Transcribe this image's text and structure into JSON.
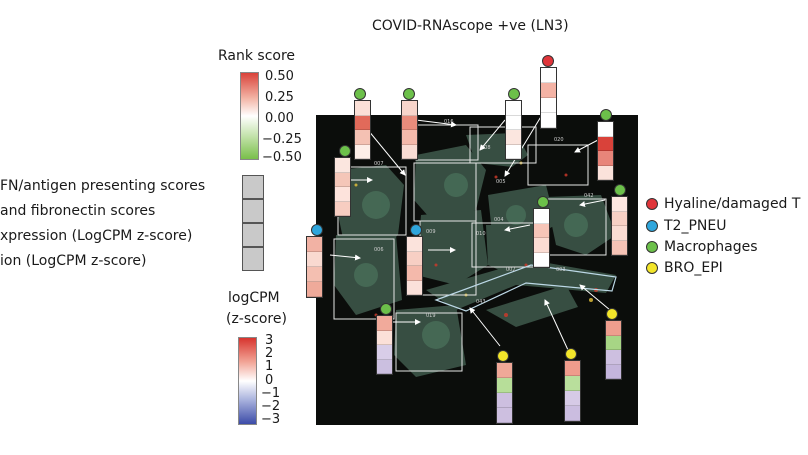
{
  "title": "COVID-RNAscope +ve (LN3)",
  "rank_score": {
    "title": "Rank score",
    "ticks": [
      "0.50",
      "0.25",
      "0.00",
      "−0.25",
      "−0.50"
    ]
  },
  "logcpm": {
    "title_line1": "logCPM",
    "title_line2": "(z-score)",
    "ticks": [
      "3",
      "2",
      "1",
      "0",
      "−1",
      "−2",
      "−3"
    ]
  },
  "row_labels": [
    "FN/antigen presenting scores",
    "and fibronectin scores",
    "xpression (LogCPM z-score)",
    "ion (LogCPM z-score)"
  ],
  "legend": [
    {
      "label": "Hyaline/damaged T",
      "color": "#e0353a"
    },
    {
      "label": "T2_PNEU",
      "color": "#2fa6dc"
    },
    {
      "label": "Macrophages",
      "color": "#6cc04a"
    },
    {
      "label": "BRO_EPI",
      "color": "#f2e52a"
    }
  ],
  "roi_labels": [
    "016",
    "008",
    "020",
    "007",
    "005",
    "004",
    "042",
    "006",
    "009",
    "010",
    "002",
    "003",
    "043",
    "019"
  ],
  "colors": {
    "background": "#ffffff",
    "rank_high": "#d9423a",
    "rank_low": "#79bf4a",
    "logcpm_high": "#d7342e",
    "logcpm_low": "#3c4ca8"
  }
}
